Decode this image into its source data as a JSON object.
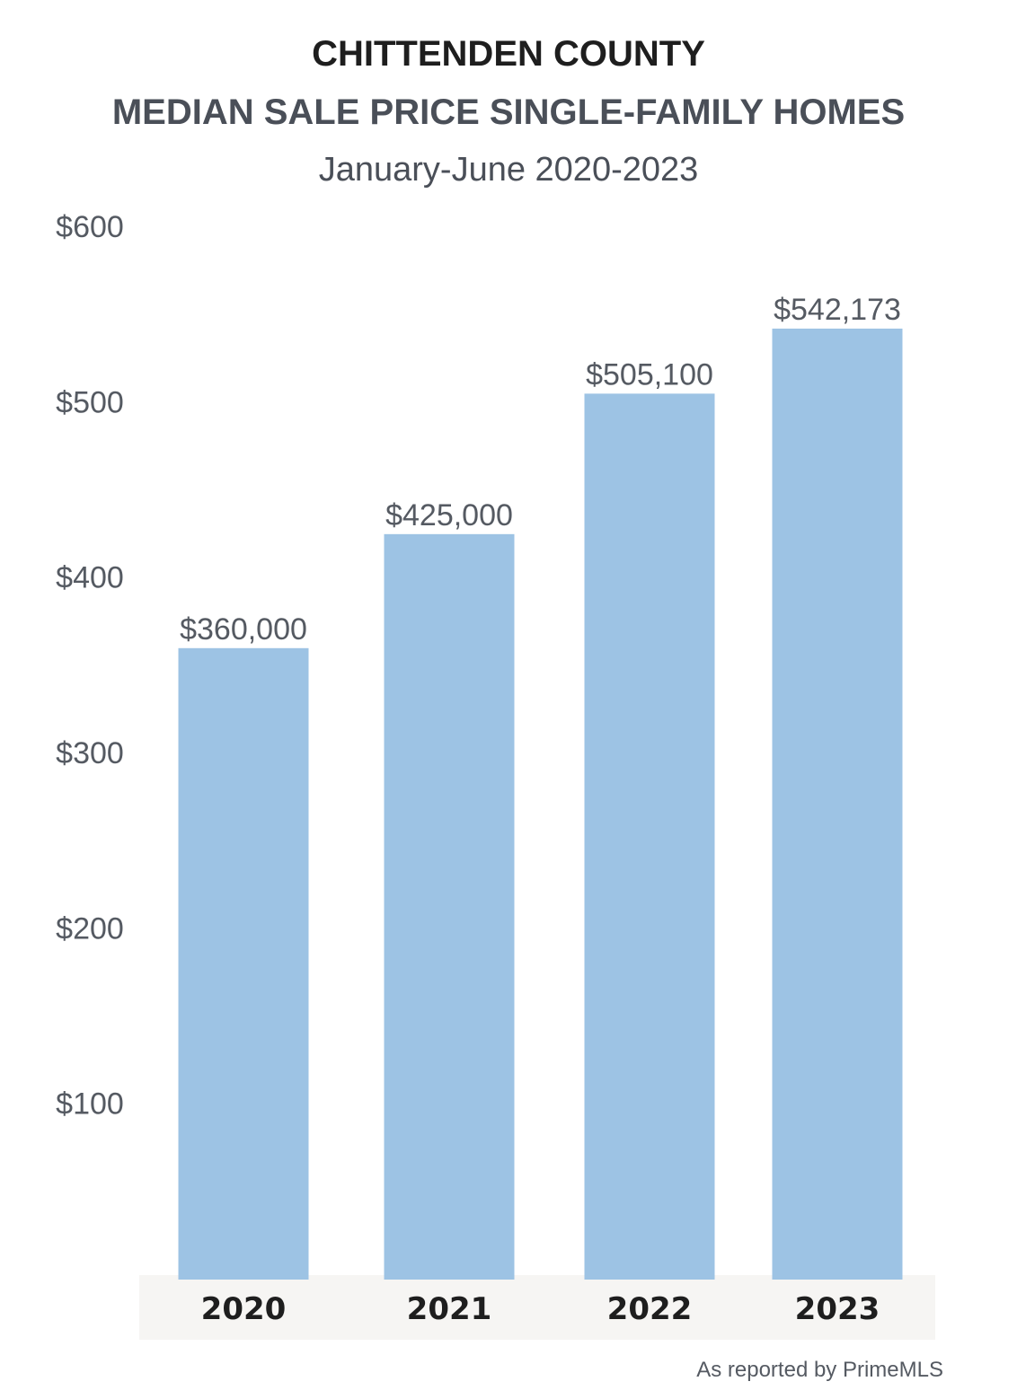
{
  "chart_data": {
    "type": "bar",
    "title": "CHITTENDEN COUNTY",
    "subtitle": "MEDIAN SALE PRICE SINGLE-FAMILY HOMES",
    "period": "January-June 2020-2023",
    "categories": [
      "2020",
      "2021",
      "2022",
      "2023"
    ],
    "values": [
      360000,
      425000,
      505100,
      542173
    ],
    "value_labels": [
      "$360,000",
      "$425,000",
      "$505,100",
      "$542,173"
    ],
    "y_ticks": [
      {
        "value": 100000,
        "label": "$100"
      },
      {
        "value": 200000,
        "label": "$200"
      },
      {
        "value": 300000,
        "label": "$300"
      },
      {
        "value": 400000,
        "label": "$400"
      },
      {
        "value": 500000,
        "label": "$500"
      },
      {
        "value": 600000,
        "label": "$600"
      }
    ],
    "ylim": [
      0,
      600000
    ],
    "grid": false,
    "bar_color": "#9dc3e4",
    "category_band_color": "#f6f5f3",
    "source": "As reported by PrimeMLS"
  }
}
